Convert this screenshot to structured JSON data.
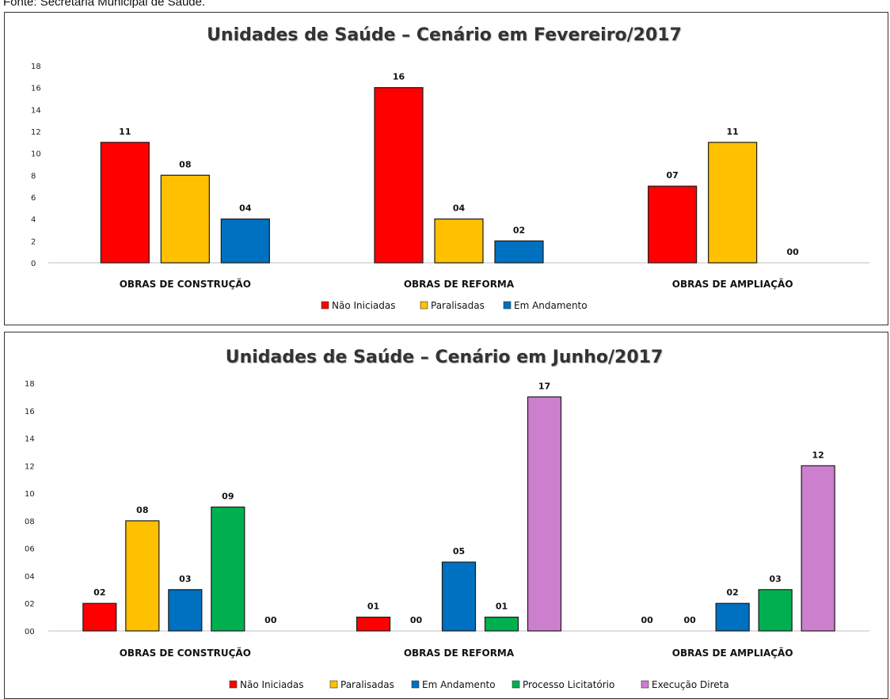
{
  "source_note": "Fonte: Secretaria Municipal de Saúde.",
  "chart_data": [
    {
      "type": "bar",
      "title": "Unidades de Saúde – Cenário em Fevereiro/2017",
      "categories": [
        "OBRAS DE CONSTRUÇÃO",
        "OBRAS DE REFORMA",
        "OBRAS DE AMPLIAÇÃO"
      ],
      "y_ticks": [
        "0",
        "2",
        "4",
        "6",
        "8",
        "10",
        "12",
        "14",
        "16",
        "18"
      ],
      "ylim": [
        0,
        18
      ],
      "grid": false,
      "legend_position": "bottom",
      "series": [
        {
          "name": "Não Iniciadas",
          "color": "#ff0000",
          "values": [
            11,
            16,
            7
          ],
          "labels": [
            "11",
            "16",
            "07"
          ]
        },
        {
          "name": "Paralisadas",
          "color": "#ffc000",
          "values": [
            8,
            4,
            11
          ],
          "labels": [
            "08",
            "04",
            "11"
          ]
        },
        {
          "name": "Em Andamento",
          "color": "#0070c0",
          "values": [
            4,
            2,
            0
          ],
          "labels": [
            "04",
            "02",
            "00"
          ]
        }
      ]
    },
    {
      "type": "bar",
      "title": "Unidades de Saúde – Cenário em Junho/2017",
      "categories": [
        "OBRAS DE CONSTRUÇÃO",
        "OBRAS DE REFORMA",
        "OBRAS DE AMPLIAÇÃO"
      ],
      "y_ticks": [
        "00",
        "02",
        "04",
        "06",
        "08",
        "10",
        "12",
        "14",
        "16",
        "18"
      ],
      "ylim": [
        0,
        18
      ],
      "grid": false,
      "legend_position": "bottom",
      "series": [
        {
          "name": "Não Iniciadas",
          "color": "#ff0000",
          "values": [
            2,
            1,
            0
          ],
          "labels": [
            "02",
            "01",
            "00"
          ]
        },
        {
          "name": "Paralisadas",
          "color": "#ffc000",
          "values": [
            8,
            0,
            0
          ],
          "labels": [
            "08",
            "00",
            "00"
          ]
        },
        {
          "name": "Em Andamento",
          "color": "#0070c0",
          "values": [
            3,
            5,
            2
          ],
          "labels": [
            "03",
            "05",
            "02"
          ]
        },
        {
          "name": "Processo Licitatório",
          "color": "#00b050",
          "values": [
            9,
            1,
            3
          ],
          "labels": [
            "09",
            "01",
            "03"
          ]
        },
        {
          "name": "Execução Direta",
          "color": "#cc7fcc",
          "values": [
            0,
            17,
            12
          ],
          "labels": [
            "00",
            "17",
            "12"
          ]
        }
      ]
    }
  ]
}
